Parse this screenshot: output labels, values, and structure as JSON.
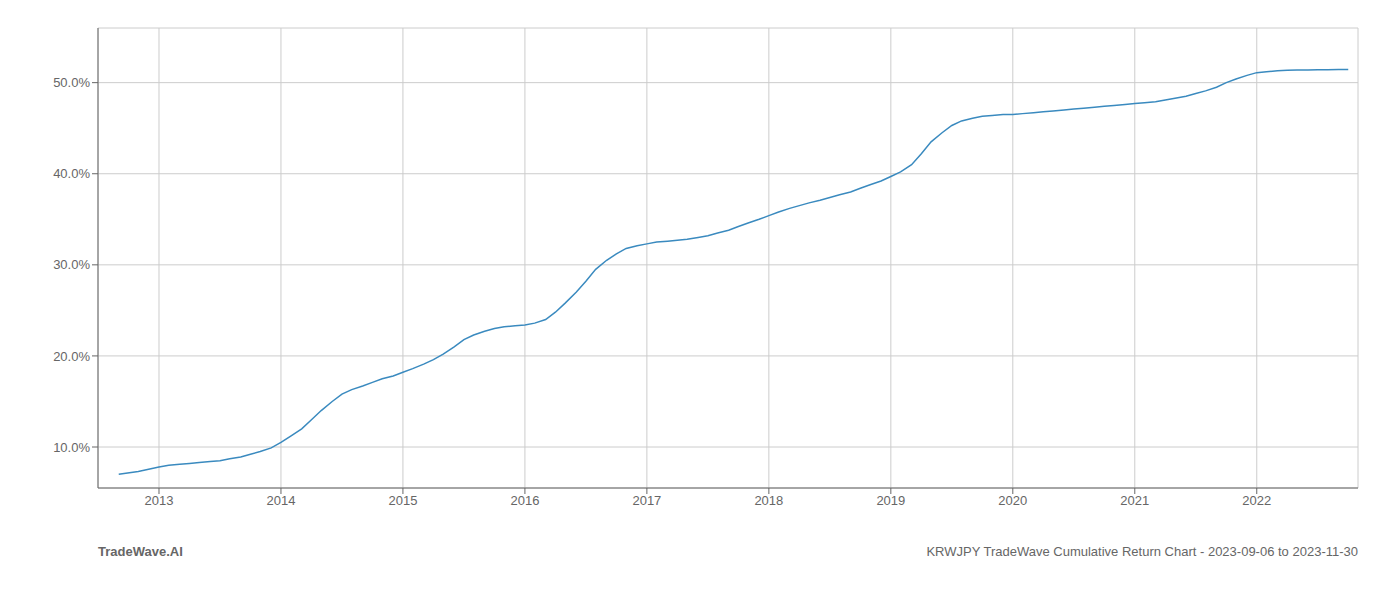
{
  "chart_data": {
    "type": "line",
    "title": "KRWJPY TradeWave Cumulative Return Chart - 2023-09-06 to 2023-11-30",
    "annotations": [
      "TradeWave.AI"
    ],
    "color": "#3a8abf",
    "grid": true,
    "xlim": [
      2012.5,
      2022.83
    ],
    "ylim": [
      5.5,
      56.0
    ],
    "xticks": [
      2013,
      2014,
      2015,
      2016,
      2017,
      2018,
      2019,
      2020,
      2021,
      2022
    ],
    "yticks": [
      {
        "value": 10.0,
        "label": "10.0%"
      },
      {
        "value": 20.0,
        "label": "20.0%"
      },
      {
        "value": 30.0,
        "label": "30.0%"
      },
      {
        "value": 40.0,
        "label": "40.0%"
      },
      {
        "value": 50.0,
        "label": "50.0%"
      }
    ],
    "x": [
      2012.67,
      2012.83,
      2013.0,
      2013.08,
      2013.17,
      2013.25,
      2013.33,
      2013.42,
      2013.5,
      2013.58,
      2013.67,
      2013.75,
      2013.83,
      2013.92,
      2014.0,
      2014.08,
      2014.17,
      2014.25,
      2014.33,
      2014.42,
      2014.5,
      2014.58,
      2014.67,
      2014.75,
      2014.83,
      2014.92,
      2015.0,
      2015.08,
      2015.17,
      2015.25,
      2015.33,
      2015.42,
      2015.5,
      2015.58,
      2015.67,
      2015.75,
      2015.83,
      2015.92,
      2016.0,
      2016.08,
      2016.17,
      2016.25,
      2016.33,
      2016.42,
      2016.5,
      2016.58,
      2016.67,
      2016.75,
      2016.83,
      2016.92,
      2017.0,
      2017.08,
      2017.17,
      2017.25,
      2017.33,
      2017.42,
      2017.5,
      2017.58,
      2017.67,
      2017.75,
      2017.83,
      2017.92,
      2018.0,
      2018.08,
      2018.17,
      2018.25,
      2018.33,
      2018.42,
      2018.5,
      2018.58,
      2018.67,
      2018.75,
      2018.83,
      2018.92,
      2019.0,
      2019.08,
      2019.17,
      2019.25,
      2019.33,
      2019.42,
      2019.5,
      2019.58,
      2019.67,
      2019.75,
      2019.83,
      2019.92,
      2020.0,
      2020.08,
      2020.17,
      2020.25,
      2020.33,
      2020.42,
      2020.5,
      2020.58,
      2020.67,
      2020.75,
      2020.83,
      2020.92,
      2021.0,
      2021.08,
      2021.17,
      2021.25,
      2021.33,
      2021.42,
      2021.5,
      2021.58,
      2021.67,
      2021.75,
      2021.83,
      2021.92,
      2022.0,
      2022.08,
      2022.17,
      2022.25,
      2022.33,
      2022.42,
      2022.5,
      2022.58,
      2022.67,
      2022.75
    ],
    "values": [
      7.0,
      7.3,
      7.8,
      8.0,
      8.1,
      8.2,
      8.3,
      8.4,
      8.5,
      8.7,
      8.9,
      9.2,
      9.5,
      9.9,
      10.5,
      11.2,
      12.0,
      13.0,
      14.0,
      15.0,
      15.8,
      16.3,
      16.7,
      17.1,
      17.5,
      17.8,
      18.2,
      18.6,
      19.1,
      19.6,
      20.2,
      21.0,
      21.8,
      22.3,
      22.7,
      23.0,
      23.2,
      23.3,
      23.4,
      23.6,
      24.0,
      24.8,
      25.8,
      27.0,
      28.2,
      29.5,
      30.5,
      31.2,
      31.8,
      32.1,
      32.3,
      32.5,
      32.6,
      32.7,
      32.8,
      33.0,
      33.2,
      33.5,
      33.8,
      34.2,
      34.6,
      35.0,
      35.4,
      35.8,
      36.2,
      36.5,
      36.8,
      37.1,
      37.4,
      37.7,
      38.0,
      38.4,
      38.8,
      39.2,
      39.7,
      40.2,
      41.0,
      42.2,
      43.5,
      44.5,
      45.3,
      45.8,
      46.1,
      46.3,
      46.4,
      46.5,
      46.5,
      46.6,
      46.7,
      46.8,
      46.9,
      47.0,
      47.1,
      47.2,
      47.3,
      47.4,
      47.5,
      47.6,
      47.7,
      47.8,
      47.9,
      48.1,
      48.3,
      48.5,
      48.8,
      49.1,
      49.5,
      50.0,
      50.4,
      50.8,
      51.1,
      51.2,
      51.3,
      51.35,
      51.38,
      51.4,
      51.42,
      51.43,
      51.44,
      51.45
    ]
  }
}
